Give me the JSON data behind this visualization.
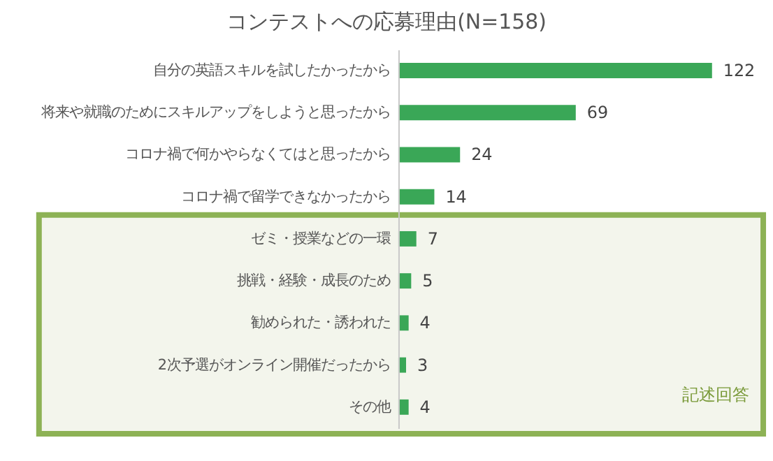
{
  "chart_data": {
    "type": "bar",
    "orientation": "horizontal",
    "title": "コンテストへの応募理由(N=158)",
    "categories": [
      "自分の英語スキルを試したかったから",
      "将来や就職のためにスキルアップをしようと思ったから",
      "コロナ禍で何かやらなくてはと思ったから",
      "コロナ禍で留学できなかったから",
      "ゼミ・授業などの一環",
      "挑戦・経験・成長のため",
      "勧められた・誘われた",
      "2次予選がオンライン開催だったから",
      "その他"
    ],
    "values": [
      122,
      69,
      24,
      14,
      7,
      5,
      4,
      3,
      4
    ],
    "color": "#3aa757",
    "data_labels": true,
    "grid": false,
    "tick_labels": "y",
    "bands": [
      {
        "axis": "y",
        "from": "ゼミ・授業などの一環",
        "to": "その他",
        "label": "記述回答",
        "color": "#8db255"
      }
    ]
  }
}
